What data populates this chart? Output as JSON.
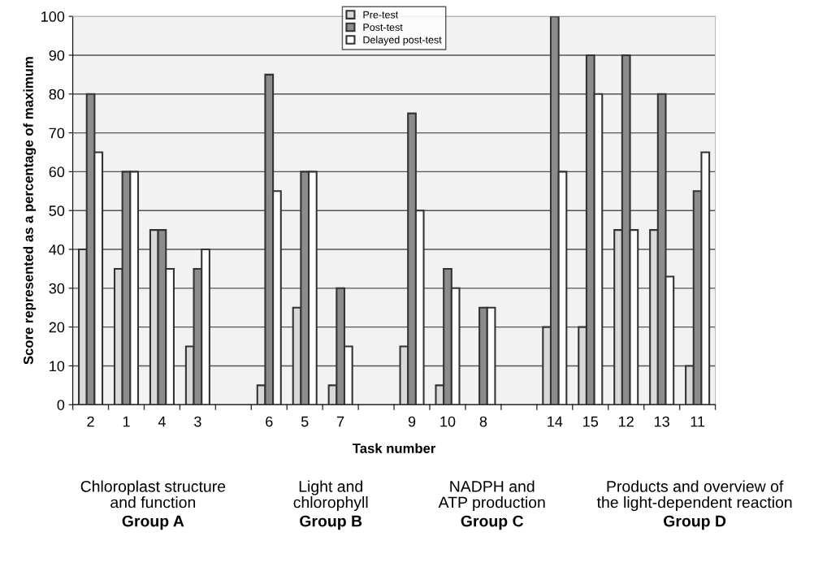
{
  "chart_data": {
    "type": "bar",
    "xlabel": "Task number",
    "ylabel": "Score represented as a percentage of maximum",
    "categories": [
      "2",
      "1",
      "4",
      "3",
      null,
      "6",
      "5",
      "7",
      null,
      "9",
      "10",
      "8",
      null,
      "14",
      "15",
      "12",
      "13",
      "11"
    ],
    "series": [
      {
        "name": "Pre-test",
        "color": "#d9d9d9",
        "values": [
          40,
          35,
          45,
          15,
          null,
          5,
          25,
          5,
          null,
          15,
          5,
          null,
          null,
          20,
          20,
          45,
          45,
          10
        ]
      },
      {
        "name": "Post-test",
        "color": "#8c8c8c",
        "values": [
          80,
          60,
          45,
          35,
          null,
          85,
          60,
          30,
          null,
          75,
          35,
          25,
          null,
          100,
          90,
          90,
          80,
          55
        ]
      },
      {
        "name": "Delayed post-test",
        "color": "#ffffff",
        "values": [
          65,
          60,
          35,
          40,
          null,
          55,
          60,
          15,
          null,
          50,
          30,
          25,
          null,
          60,
          80,
          45,
          33,
          65
        ]
      }
    ],
    "ylim": [
      0,
      100
    ],
    "yticks": [
      0,
      10,
      20,
      30,
      40,
      50,
      60,
      70,
      80,
      90,
      100
    ],
    "grid": "y",
    "legend": "top",
    "annotations": [
      "Chloroplast structure\nand function",
      "Group A",
      "Light and\nchlorophyll",
      "Group B",
      "NADPH and\nATP production",
      "Group C",
      "Products and overview of\nthe light-dependent reaction",
      "Group D"
    ]
  }
}
